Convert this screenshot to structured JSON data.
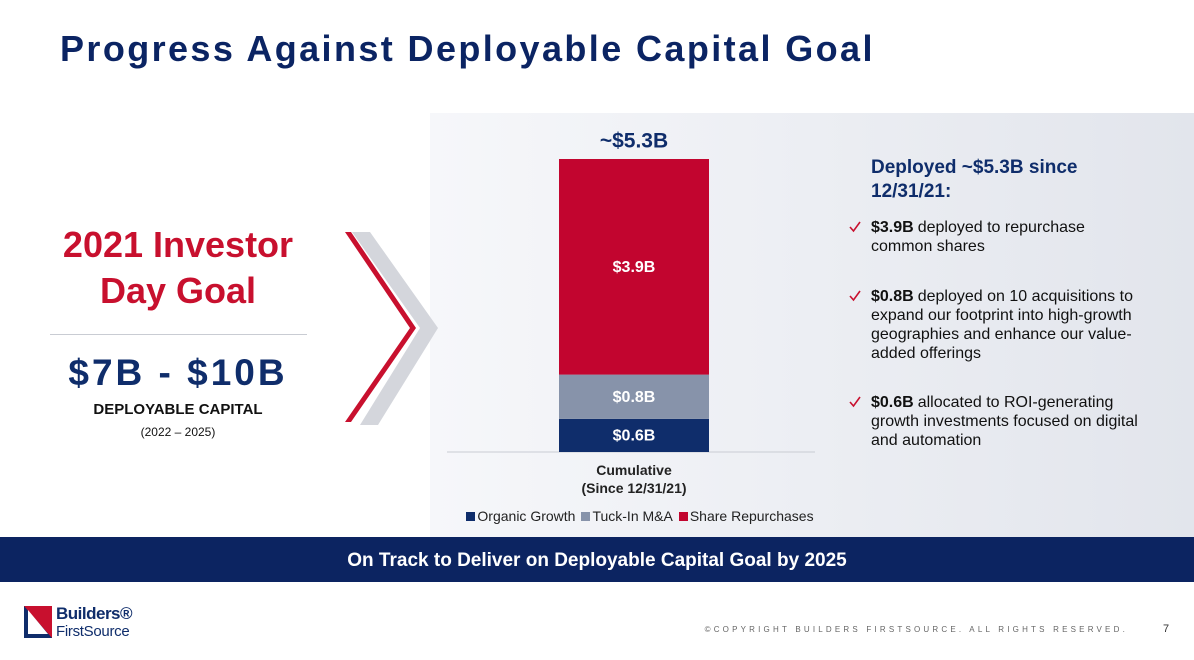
{
  "title": "Progress Against Deployable Capital Goal",
  "goal": {
    "heading": "2021 Investor Day Goal",
    "amount": "$7B - $10B",
    "label": "DEPLOYABLE CAPITAL",
    "period": "(2022 – 2025)"
  },
  "chart_data": {
    "type": "stacked-bar",
    "categories": [
      "Cumulative\n(Since 12/31/21)"
    ],
    "total_label": "~$5.3B",
    "series": [
      {
        "name": "Organic Growth",
        "color": "#0f2d6b",
        "values": [
          0.6
        ],
        "value_labels": [
          "$0.6B"
        ]
      },
      {
        "name": "Tuck-In M&A",
        "color": "#8793aa",
        "values": [
          0.8
        ],
        "value_labels": [
          "$0.8B"
        ]
      },
      {
        "name": "Share Repurchases",
        "color": "#c2052f",
        "values": [
          3.9
        ],
        "value_labels": [
          "$3.9B"
        ]
      }
    ],
    "legend": "bottom"
  },
  "summary": {
    "heading": "Deployed ~$5.3B since 12/31/21:",
    "bullets": [
      {
        "bold": "$3.9B",
        "text": "deployed to repurchase common shares"
      },
      {
        "bold": "$0.8B",
        "text": "deployed on 10 acquisitions to expand our footprint into high-growth geographies and enhance our value-added offerings"
      },
      {
        "bold": "$0.6B",
        "text": "allocated to ROI-generating growth investments focused on digital and automation"
      }
    ]
  },
  "banner": "On Track to Deliver on Deployable Capital Goal by 2025",
  "footer": {
    "logo_top": "Builders®",
    "logo_bottom": "FirstSource",
    "copyright": "©COPYRIGHT BUILDERS FIRSTSOURCE. ALL RIGHTS RESERVED.",
    "page": "7"
  }
}
